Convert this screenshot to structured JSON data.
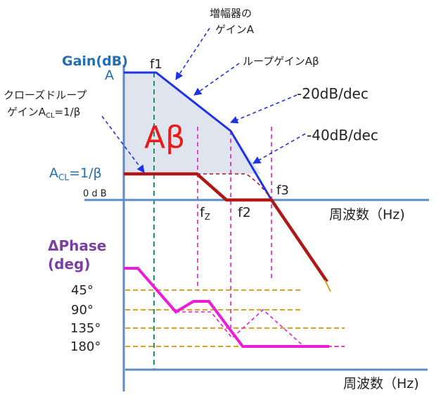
{
  "colors": {
    "axis": "#5b8dc4",
    "gain_curve": "#1f33e6",
    "closed_loop": "#b01818",
    "phase": "#ee1bd9",
    "guide_magenta": "#e020c8",
    "guide_green": "#1a9a5a",
    "grid_gold": "#d8a52a",
    "shade": "#dfe4ee",
    "annot": "#1f33e6",
    "title_gain": "#1f6fb5",
    "title_phase": "#7b3fa3",
    "abeta": "#e81c1c"
  },
  "labels": {
    "gain_axis_title": "Gain(dB)",
    "phase_axis_title_1": "ΔPhase",
    "phase_axis_title_2": "(deg)",
    "freq_axis_top": "周波数（Hz)",
    "freq_axis_bottom": "周波数（Hz)",
    "y_A": "A",
    "y_acl_main": "A",
    "y_acl_sub": "CL",
    "y_acl_tail": "=1/β",
    "y_0db": "0 d B",
    "f1": "f1",
    "fz_main": "f",
    "fz_sub": "Z",
    "f2": "f2",
    "f3": "f3",
    "abeta": "Aβ",
    "slope_20": "-20dB/dec",
    "slope_40": "-40dB/dec",
    "note_amp_gain_1": "増幅器の",
    "note_amp_gain_2": "ゲインA",
    "note_loop_gain": "ループゲインAβ",
    "note_closed_1": "クローズドループ",
    "note_closed_2_main": "ゲインA",
    "note_closed_2_sub": "CL",
    "note_closed_2_tail": "=1/β",
    "phase_45": "45°",
    "phase_90": "90°",
    "phase_135": "135°",
    "phase_180": "180°"
  }
}
